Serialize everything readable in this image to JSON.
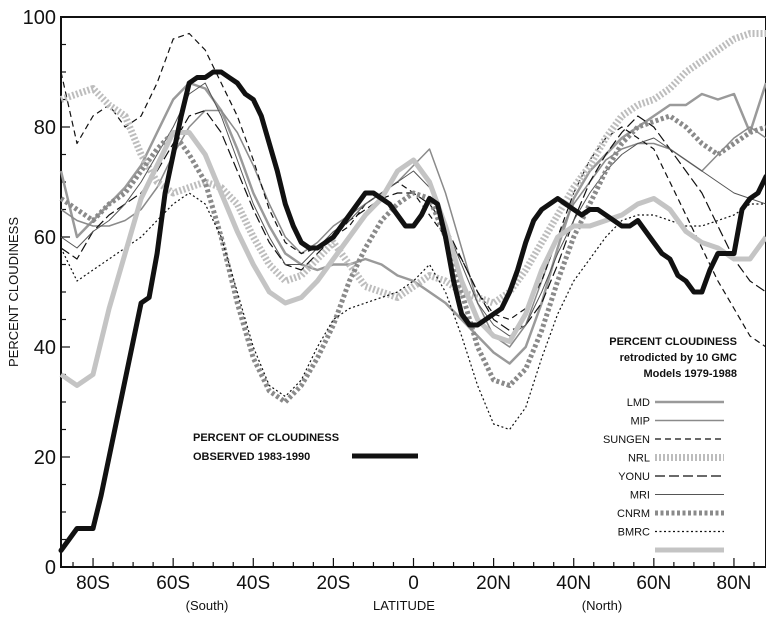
{
  "chart_data": {
    "type": "line",
    "title": "",
    "xlabel": "LATITUDE",
    "ylabel": "PERCENT CLOUDINESS",
    "x_sublabels": [
      "(South)",
      "(North)"
    ],
    "xlim": [
      -88,
      88
    ],
    "ylim": [
      0,
      100
    ],
    "x_ticks": [
      {
        "value": -80,
        "label": "80S"
      },
      {
        "value": -60,
        "label": "60S"
      },
      {
        "value": -40,
        "label": "40S"
      },
      {
        "value": -20,
        "label": "20S"
      },
      {
        "value": 0,
        "label": "0"
      },
      {
        "value": 20,
        "label": "20N"
      },
      {
        "value": 40,
        "label": "40N"
      },
      {
        "value": 60,
        "label": "60N"
      },
      {
        "value": 80,
        "label": "80N"
      }
    ],
    "y_ticks": [
      0,
      20,
      40,
      60,
      80,
      100
    ],
    "grid": false,
    "legend_position": "right",
    "legend_title": [
      "PERCENT CLOUDINESS",
      "retrodicted by 10 GMC",
      "Models 1979-1988"
    ],
    "observed_label": [
      "PERCENT OF CLOUDINESS",
      "OBSERVED 1983-1990"
    ],
    "series": [
      {
        "name": "LMD",
        "color": "#9a9a9a",
        "width": 2.5,
        "dash": "",
        "x": [
          -88,
          -84,
          -80,
          -76,
          -72,
          -68,
          -64,
          -60,
          -56,
          -52,
          -48,
          -44,
          -40,
          -36,
          -32,
          -28,
          -24,
          -20,
          -16,
          -12,
          -8,
          -4,
          0,
          4,
          8,
          12,
          16,
          20,
          24,
          28,
          32,
          36,
          40,
          44,
          48,
          52,
          56,
          60,
          64,
          68,
          72,
          76,
          80,
          84,
          88
        ],
        "y": [
          72,
          60,
          63,
          66,
          69,
          73,
          79,
          85,
          88,
          87,
          83,
          76,
          68,
          62,
          57,
          55,
          54,
          55,
          55,
          56,
          55,
          53,
          52,
          50,
          48,
          45,
          42,
          39,
          37,
          40,
          48,
          58,
          67,
          72,
          75,
          78,
          80,
          82,
          84,
          84,
          86,
          85,
          86,
          79,
          88
        ]
      },
      {
        "name": "MIP",
        "color": "#8a8a8a",
        "width": 1.5,
        "dash": "",
        "x": [
          -88,
          -84,
          -80,
          -76,
          -72,
          -68,
          -64,
          -60,
          -56,
          -52,
          -48,
          -44,
          -40,
          -36,
          -32,
          -28,
          -24,
          -20,
          -16,
          -12,
          -8,
          -4,
          0,
          4,
          8,
          12,
          16,
          20,
          24,
          28,
          32,
          36,
          40,
          44,
          48,
          52,
          56,
          60,
          64,
          68,
          72,
          76,
          80,
          84,
          88
        ],
        "y": [
          65,
          63,
          62,
          62,
          63,
          65,
          69,
          75,
          80,
          83,
          83,
          79,
          73,
          66,
          60,
          57,
          59,
          62,
          64,
          66,
          68,
          70,
          73,
          76,
          68,
          58,
          48,
          42,
          40,
          44,
          52,
          60,
          66,
          70,
          74,
          76,
          77,
          77,
          76,
          74,
          72,
          75,
          78,
          80,
          78
        ]
      },
      {
        "name": "SUNGEN",
        "color": "#111111",
        "width": 1.2,
        "dash": "6 4",
        "x": [
          -88,
          -84,
          -80,
          -76,
          -72,
          -68,
          -64,
          -60,
          -56,
          -52,
          -48,
          -44,
          -40,
          -36,
          -32,
          -28,
          -24,
          -20,
          -16,
          -12,
          -8,
          -4,
          0,
          4,
          8,
          12,
          16,
          20,
          24,
          28,
          32,
          36,
          40,
          44,
          48,
          52,
          56,
          60,
          64,
          68,
          72,
          76,
          80,
          84,
          88
        ],
        "y": [
          90,
          77,
          82,
          84,
          80,
          82,
          88,
          96,
          97,
          94,
          88,
          82,
          74,
          65,
          59,
          57,
          58,
          60,
          62,
          66,
          68,
          70,
          68,
          64,
          60,
          56,
          50,
          46,
          45,
          47,
          52,
          60,
          68,
          74,
          78,
          80,
          78,
          76,
          70,
          64,
          58,
          52,
          47,
          42,
          40
        ]
      },
      {
        "name": "NRL",
        "color": "#bdbdbd",
        "width": 7,
        "dash": "2 2",
        "x": [
          -88,
          -84,
          -80,
          -76,
          -72,
          -68,
          -64,
          -60,
          -56,
          -52,
          -48,
          -44,
          -40,
          -36,
          -32,
          -28,
          -24,
          -20,
          -16,
          -12,
          -8,
          -4,
          0,
          4,
          8,
          12,
          16,
          20,
          24,
          28,
          32,
          36,
          40,
          44,
          48,
          52,
          56,
          60,
          64,
          68,
          72,
          76,
          80,
          84,
          88
        ],
        "y": [
          85,
          86,
          87,
          84,
          82,
          75,
          70,
          68,
          69,
          70,
          69,
          66,
          60,
          55,
          52,
          53,
          56,
          59,
          55,
          51,
          50,
          49,
          51,
          53,
          52,
          50,
          49,
          48,
          50,
          54,
          59,
          64,
          69,
          73,
          78,
          82,
          84,
          85,
          87,
          90,
          92,
          94,
          96,
          97,
          97
        ]
      },
      {
        "name": "YONU",
        "color": "#111111",
        "width": 1.2,
        "dash": "10 4",
        "x": [
          -88,
          -84,
          -80,
          -76,
          -72,
          -68,
          -64,
          -60,
          -56,
          -52,
          -48,
          -44,
          -40,
          -36,
          -32,
          -28,
          -24,
          -20,
          -16,
          -12,
          -8,
          -4,
          0,
          4,
          8,
          12,
          16,
          20,
          24,
          28,
          32,
          36,
          40,
          44,
          48,
          52,
          56,
          60,
          64,
          68,
          72,
          76,
          80,
          84,
          88
        ],
        "y": [
          58,
          56,
          61,
          64,
          66,
          68,
          72,
          77,
          82,
          83,
          79,
          72,
          65,
          59,
          55,
          54,
          57,
          60,
          63,
          65,
          67,
          68,
          68,
          66,
          62,
          56,
          50,
          45,
          43,
          44,
          48,
          55,
          63,
          70,
          75,
          79,
          82,
          80,
          76,
          72,
          68,
          62,
          56,
          52,
          50
        ]
      },
      {
        "name": "MRI",
        "color": "#555555",
        "width": 1,
        "dash": "",
        "x": [
          -88,
          -84,
          -80,
          -76,
          -72,
          -68,
          -64,
          -60,
          -56,
          -52,
          -48,
          -44,
          -40,
          -36,
          -32,
          -28,
          -24,
          -20,
          -16,
          -12,
          -8,
          -4,
          0,
          4,
          8,
          12,
          16,
          20,
          24,
          28,
          32,
          36,
          40,
          44,
          48,
          52,
          56,
          60,
          64,
          68,
          72,
          76,
          80,
          84,
          88
        ],
        "y": [
          60,
          58,
          61,
          63,
          66,
          70,
          75,
          80,
          86,
          88,
          82,
          74,
          66,
          60,
          55,
          55,
          58,
          61,
          63,
          66,
          68,
          70,
          72,
          69,
          62,
          55,
          48,
          44,
          42,
          44,
          50,
          57,
          63,
          68,
          72,
          75,
          77,
          78,
          76,
          74,
          72,
          70,
          68,
          67,
          66
        ]
      },
      {
        "name": "CNRM",
        "color": "#8a8a8a",
        "width": 5,
        "dash": "3 2.5",
        "x": [
          -88,
          -84,
          -80,
          -76,
          -72,
          -68,
          -64,
          -60,
          -56,
          -52,
          -48,
          -44,
          -40,
          -36,
          -32,
          -28,
          -24,
          -20,
          -16,
          -12,
          -8,
          -4,
          0,
          4,
          8,
          12,
          16,
          20,
          24,
          28,
          32,
          36,
          40,
          44,
          48,
          52,
          56,
          60,
          64,
          68,
          72,
          76,
          80,
          84,
          88
        ],
        "y": [
          67,
          65,
          63,
          66,
          68,
          72,
          76,
          79,
          75,
          70,
          60,
          48,
          38,
          32,
          30,
          33,
          38,
          44,
          52,
          58,
          63,
          66,
          68,
          67,
          60,
          50,
          40,
          34,
          33,
          36,
          43,
          52,
          60,
          66,
          72,
          77,
          80,
          81,
          82,
          80,
          77,
          75,
          77,
          79,
          80
        ]
      },
      {
        "name": "BMRC",
        "color": "#111111",
        "width": 1.2,
        "dash": "2 2.5",
        "x": [
          -88,
          -84,
          -80,
          -76,
          -72,
          -68,
          -64,
          -60,
          -56,
          -52,
          -48,
          -44,
          -40,
          -36,
          -32,
          -28,
          -24,
          -20,
          -16,
          -12,
          -8,
          -4,
          0,
          4,
          8,
          12,
          16,
          20,
          24,
          28,
          32,
          36,
          40,
          44,
          48,
          52,
          56,
          60,
          64,
          68,
          72,
          76,
          80,
          84,
          88
        ],
        "y": [
          58,
          52,
          54,
          56,
          58,
          60,
          63,
          66,
          68,
          66,
          60,
          50,
          40,
          33,
          31,
          34,
          40,
          45,
          47,
          48,
          49,
          50,
          52,
          55,
          50,
          42,
          33,
          26,
          25,
          29,
          38,
          46,
          52,
          56,
          60,
          63,
          64,
          64,
          63,
          62,
          62,
          63,
          64,
          66,
          66
        ]
      },
      {
        "name": "",
        "color": "#c4c4c4",
        "width": 5,
        "dash": "",
        "x": [
          -88,
          -84,
          -80,
          -76,
          -72,
          -68,
          -64,
          -60,
          -56,
          -52,
          -48,
          -44,
          -40,
          -36,
          -32,
          -28,
          -24,
          -20,
          -16,
          -12,
          -8,
          -4,
          0,
          4,
          8,
          12,
          16,
          20,
          24,
          28,
          32,
          36,
          40,
          44,
          48,
          52,
          56,
          60,
          64,
          68,
          72,
          76,
          80,
          84,
          88
        ],
        "y": [
          35,
          33,
          35,
          47,
          57,
          67,
          73,
          79,
          79,
          75,
          68,
          61,
          55,
          50,
          48,
          49,
          52,
          56,
          60,
          64,
          67,
          72,
          74,
          70,
          62,
          52,
          45,
          42,
          41,
          46,
          54,
          60,
          62,
          62,
          63,
          64,
          66,
          67,
          65,
          61,
          59,
          58,
          56,
          56,
          60
        ]
      }
    ],
    "observed": {
      "name": "",
      "color": "#111111",
      "width": 5,
      "x": [
        -88,
        -86,
        -84,
        -82,
        -80,
        -78,
        -76,
        -74,
        -72,
        -70,
        -68,
        -66,
        -64,
        -62,
        -60,
        -58,
        -56,
        -54,
        -52,
        -50,
        -48,
        -46,
        -44,
        -42,
        -40,
        -38,
        -36,
        -34,
        -32,
        -30,
        -28,
        -26,
        -24,
        -22,
        -20,
        -18,
        -16,
        -14,
        -12,
        -10,
        -8,
        -6,
        -4,
        -2,
        0,
        2,
        4,
        6,
        8,
        10,
        12,
        14,
        16,
        18,
        20,
        22,
        24,
        26,
        28,
        30,
        32,
        34,
        36,
        38,
        40,
        42,
        44,
        46,
        48,
        50,
        52,
        54,
        56,
        58,
        60,
        62,
        64,
        66,
        68,
        70,
        72,
        74,
        76,
        78,
        80,
        82,
        84,
        86,
        88
      ],
      "y": [
        3,
        5,
        7,
        7,
        7,
        13,
        20,
        27,
        34,
        41,
        48,
        49,
        57,
        68,
        75,
        82,
        88,
        89,
        89,
        90,
        90,
        89,
        88,
        86,
        85,
        82,
        77,
        72,
        66,
        62,
        59,
        58,
        58,
        59,
        60,
        62,
        64,
        66,
        68,
        68,
        67,
        66,
        64,
        62,
        62,
        64,
        67,
        66,
        60,
        52,
        46,
        44,
        44,
        45,
        46,
        47,
        50,
        54,
        59,
        63,
        65,
        66,
        67,
        66,
        65,
        64,
        65,
        65,
        64,
        63,
        62,
        62,
        63,
        61,
        59,
        57,
        56,
        53,
        52,
        50,
        50,
        54,
        57,
        57,
        57,
        65,
        67,
        68,
        71
      ]
    }
  }
}
